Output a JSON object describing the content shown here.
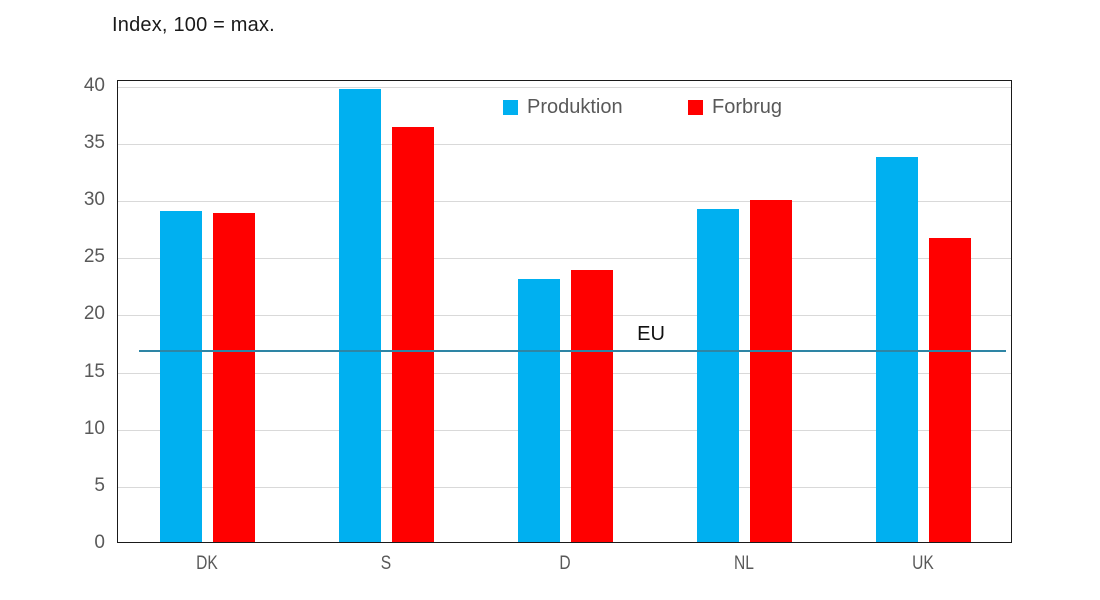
{
  "title": "Index, 100 = max.",
  "colors": {
    "produktion": "#00B0F0",
    "forbrug": "#FF0000",
    "eu_line": "#2E85A5",
    "axis_text": "#595959",
    "gridline": "#D9D9D9",
    "plot_border": "#1A1A1A"
  },
  "chart_data": {
    "type": "bar",
    "title": "Index, 100 = max.",
    "categories": [
      "DK",
      "S",
      "D",
      "NL",
      "UK"
    ],
    "series": [
      {
        "name": "Produktion",
        "color": "#00B0F0",
        "values": [
          29.0,
          39.6,
          23.0,
          29.1,
          33.7
        ]
      },
      {
        "name": "Forbrug",
        "color": "#FF0000",
        "values": [
          28.8,
          36.3,
          23.8,
          29.9,
          26.6
        ]
      }
    ],
    "reference_line": {
      "label": "EU",
      "value": 16.9,
      "color": "#2E85A5"
    },
    "xlabel": "",
    "ylabel": "",
    "ylim": [
      0,
      40.5
    ],
    "yticks": [
      0,
      5,
      10,
      15,
      20,
      25,
      30,
      35,
      40
    ],
    "grid": "horizontal",
    "legend_position": "inside-top-center"
  }
}
